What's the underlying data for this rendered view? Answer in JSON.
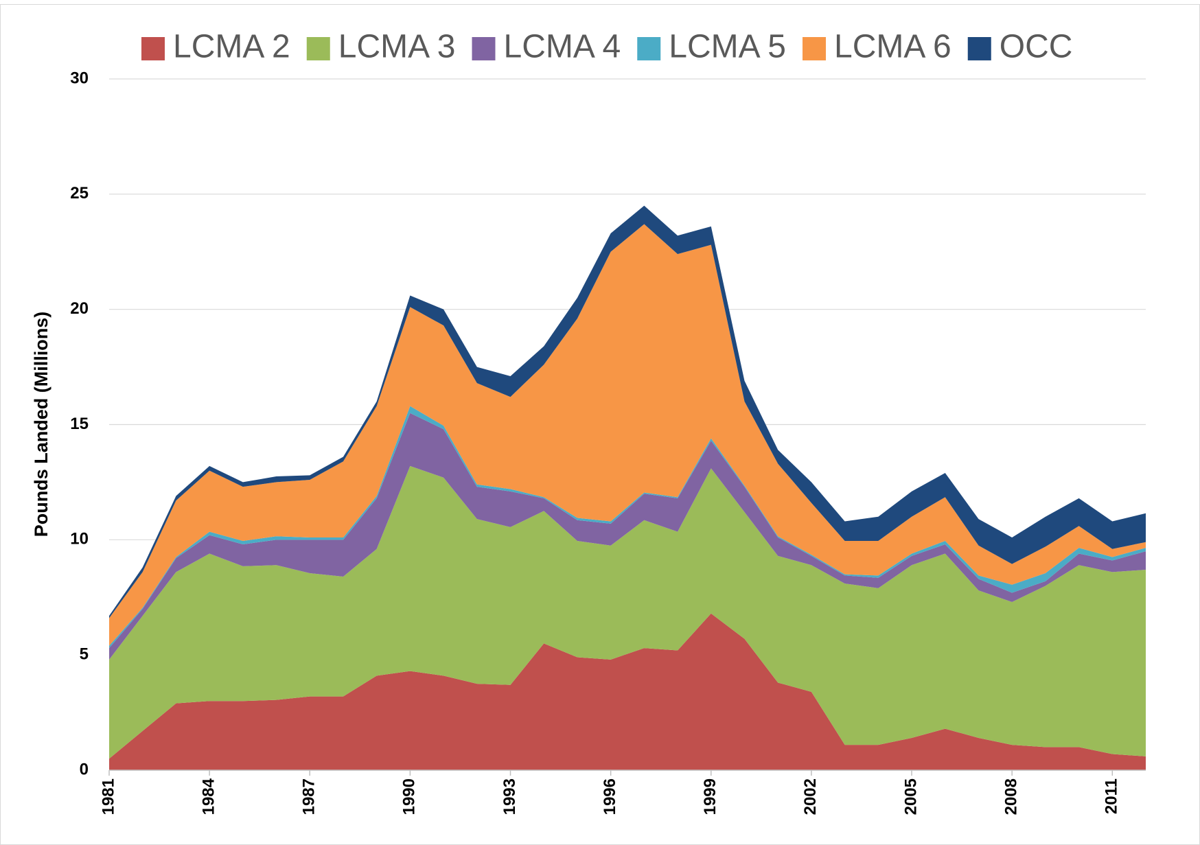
{
  "chart_data": {
    "type": "stacked_area",
    "y_label": "Pounds Landed (Millions)",
    "x": [
      1981,
      1982,
      1983,
      1984,
      1985,
      1986,
      1987,
      1988,
      1989,
      1990,
      1991,
      1992,
      1993,
      1994,
      1995,
      1996,
      1997,
      1998,
      1999,
      2000,
      2001,
      2002,
      2003,
      2004,
      2005,
      2006,
      2007,
      2008,
      2009,
      2010,
      2011,
      2012
    ],
    "xlim": [
      1981,
      2012
    ],
    "xticks": [
      1981,
      1984,
      1987,
      1990,
      1993,
      1996,
      1999,
      2002,
      2005,
      2008,
      2011
    ],
    "ylim": [
      0,
      30
    ],
    "yticks": [
      0,
      5,
      10,
      15,
      20,
      25,
      30
    ],
    "grid": true,
    "legend": "top",
    "series": [
      {
        "name": "LCMA 2",
        "color": "#c0504d",
        "values": [
          0.5,
          1.7,
          2.9,
          3.0,
          3.0,
          3.05,
          3.2,
          3.2,
          4.1,
          4.3,
          4.1,
          3.75,
          3.7,
          5.5,
          4.9,
          4.8,
          5.3,
          5.2,
          6.8,
          5.7,
          3.8,
          3.4,
          1.1,
          1.1,
          1.4,
          1.8,
          1.4,
          1.1,
          1.0,
          1.0,
          0.7,
          0.6
        ]
      },
      {
        "name": "LCMA 3",
        "color": "#9bbb59",
        "values": [
          4.3,
          5.0,
          5.7,
          6.4,
          5.85,
          5.85,
          5.35,
          5.2,
          5.5,
          8.9,
          8.6,
          7.15,
          6.85,
          5.75,
          5.05,
          4.95,
          5.55,
          5.15,
          6.3,
          5.5,
          5.5,
          5.5,
          7.0,
          6.8,
          7.5,
          7.6,
          6.4,
          6.2,
          7.0,
          7.9,
          7.9,
          8.1
        ]
      },
      {
        "name": "LCMA 4",
        "color": "#8064a2",
        "values": [
          0.5,
          0.3,
          0.6,
          0.8,
          0.95,
          1.1,
          1.45,
          1.6,
          2.2,
          2.3,
          2.1,
          1.4,
          1.55,
          0.55,
          0.9,
          0.95,
          1.15,
          1.45,
          1.2,
          1.1,
          0.8,
          0.4,
          0.35,
          0.45,
          0.4,
          0.4,
          0.5,
          0.4,
          0.2,
          0.5,
          0.5,
          0.8
        ]
      },
      {
        "name": "LCMA 5",
        "color": "#4bacc6",
        "values": [
          0.1,
          0.05,
          0.05,
          0.15,
          0.15,
          0.15,
          0.1,
          0.1,
          0.1,
          0.3,
          0.15,
          0.1,
          0.1,
          0.05,
          0.1,
          0.1,
          0.05,
          0.05,
          0.1,
          0.05,
          0.05,
          0.05,
          0.05,
          0.1,
          0.1,
          0.15,
          0.15,
          0.35,
          0.35,
          0.25,
          0.15,
          0.15
        ]
      },
      {
        "name": "LCMA 6",
        "color": "#f79646",
        "values": [
          1.2,
          1.55,
          2.45,
          2.65,
          2.35,
          2.35,
          2.5,
          3.3,
          3.9,
          4.3,
          4.35,
          4.4,
          4.0,
          5.75,
          8.65,
          11.7,
          11.65,
          10.55,
          8.4,
          3.65,
          3.15,
          2.25,
          1.45,
          1.5,
          1.6,
          1.9,
          1.3,
          0.9,
          1.15,
          0.95,
          0.35,
          0.25
        ]
      },
      {
        "name": "OCC",
        "color": "#1f497d",
        "values": [
          0.1,
          0.2,
          0.2,
          0.2,
          0.2,
          0.25,
          0.2,
          0.2,
          0.2,
          0.5,
          0.7,
          0.7,
          0.9,
          0.8,
          0.9,
          0.8,
          0.8,
          0.8,
          0.8,
          0.9,
          0.6,
          0.9,
          0.85,
          1.05,
          1.1,
          1.05,
          1.15,
          1.15,
          1.3,
          1.2,
          1.2,
          1.25
        ]
      }
    ]
  }
}
